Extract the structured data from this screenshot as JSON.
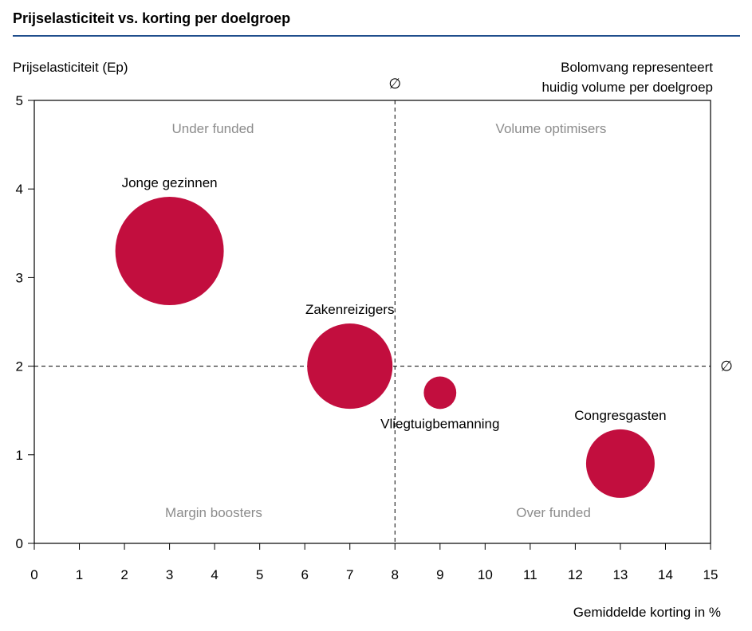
{
  "title": "Prijselasticiteit vs. korting per doelgroep",
  "chart_data": {
    "type": "scatter",
    "subtype": "bubble",
    "ylabel": "Prijselasticiteit (Ep)",
    "xlabel": "Gemiddelde korting in %",
    "note_lines": [
      "Bolomvang representeert",
      "huidig volume per doelgroep"
    ],
    "xlim": [
      0,
      15
    ],
    "ylim": [
      0,
      5
    ],
    "xticks": [
      0,
      1,
      2,
      3,
      4,
      5,
      6,
      7,
      8,
      9,
      10,
      11,
      12,
      13,
      14,
      15
    ],
    "yticks": [
      0,
      1,
      2,
      3,
      4,
      5
    ],
    "grid": false,
    "average_lines": {
      "x": 8,
      "y": 2,
      "symbol": "∅"
    },
    "quadrants": [
      {
        "label": "Under funded",
        "position": "top-left"
      },
      {
        "label": "Volume optimisers",
        "position": "top-right"
      },
      {
        "label": "Margin boosters",
        "position": "bottom-left"
      },
      {
        "label": "Over funded",
        "position": "bottom-right"
      }
    ],
    "bubble_color": "#C20E3E",
    "quadrant_label_color": "#8C8C8C",
    "points": [
      {
        "name": "Jonge gezinnen",
        "x": 3,
        "y": 3.3,
        "size": 100,
        "label_position": "above"
      },
      {
        "name": "Zakenreizigers",
        "x": 7,
        "y": 2.0,
        "size": 62,
        "label_position": "above"
      },
      {
        "name": "Vliegtuigbemanning",
        "x": 9,
        "y": 1.7,
        "size": 9,
        "label_position": "below"
      },
      {
        "name": "Congresgasten",
        "x": 13,
        "y": 0.9,
        "size": 40,
        "label_position": "above"
      }
    ]
  }
}
